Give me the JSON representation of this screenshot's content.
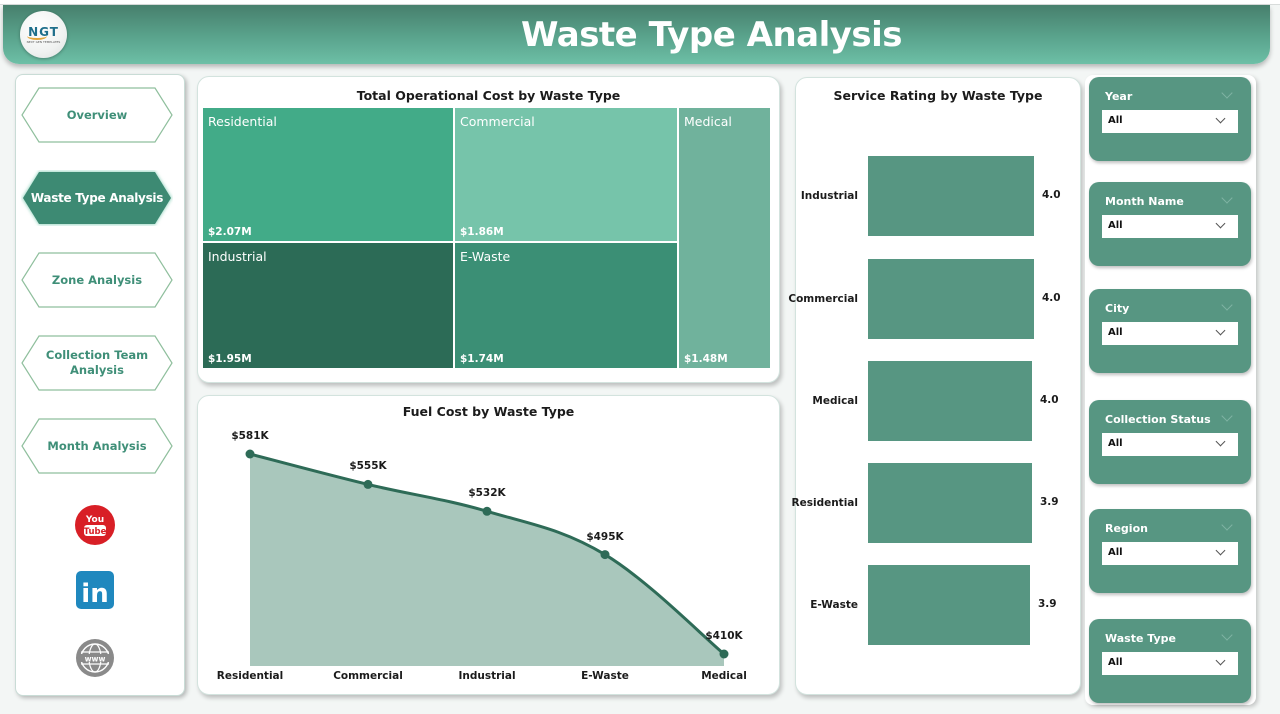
{
  "header": {
    "title": "Waste Type Analysis",
    "logo_text": "NGT",
    "logo_subtext": "NEXT GEN TEMPLATES"
  },
  "nav": {
    "items": [
      {
        "label": "Overview",
        "active": false
      },
      {
        "label": "Waste Type Analysis",
        "active": true
      },
      {
        "label": "Zone Analysis",
        "active": false
      },
      {
        "label": "Collection Team Analysis",
        "active": false
      },
      {
        "label": "Month Analysis",
        "active": false
      }
    ],
    "social": [
      {
        "icon": "youtube-icon",
        "text_top": "You",
        "text_bottom": "Tube",
        "color": "#d81f26"
      },
      {
        "icon": "linkedin-icon",
        "text": "in",
        "color": "#1f88be"
      },
      {
        "icon": "globe-www-icon",
        "text": "www",
        "color": "#8a8a8a"
      }
    ]
  },
  "treemap": {
    "title": "Total Operational Cost by Waste Type"
  },
  "fuel_chart": {
    "title": "Fuel Cost by Waste Type"
  },
  "rating_chart": {
    "title": "Service Rating by Waste Type"
  },
  "filters": [
    {
      "label": "Year",
      "value": "All"
    },
    {
      "label": "Month Name",
      "value": "All"
    },
    {
      "label": "City",
      "value": "All"
    },
    {
      "label": "Collection Status",
      "value": "All"
    },
    {
      "label": "Region",
      "value": "All"
    },
    {
      "label": "Waste Type",
      "value": "All"
    }
  ],
  "colors": {
    "header_dark": "#477f6c",
    "header_light": "#6dbfa6",
    "accent": "#579682",
    "line": "#2e6b57",
    "area_fill": "#a9c7bc",
    "treemap_residential": "#42ab88",
    "treemap_commercial": "#76c4aa",
    "treemap_medical": "#70b29c",
    "treemap_industrial": "#2c6b56",
    "treemap_ewaste": "#3b8f75"
  },
  "chart_data": [
    {
      "type": "treemap",
      "title": "Total Operational Cost by Waste Type",
      "categories": [
        "Residential",
        "Commercial",
        "Industrial",
        "E-Waste",
        "Medical"
      ],
      "values": [
        2.07,
        1.86,
        1.95,
        1.74,
        1.48
      ],
      "labels": [
        "$2.07M",
        "$1.86M",
        "$1.95M",
        "$1.74M",
        "$1.48M"
      ],
      "unit": "USD millions"
    },
    {
      "type": "area",
      "title": "Fuel Cost by Waste Type",
      "categories": [
        "Residential",
        "Commercial",
        "Industrial",
        "E-Waste",
        "Medical"
      ],
      "values": [
        581,
        555,
        532,
        495,
        410
      ],
      "labels": [
        "$581K",
        "$555K",
        "$532K",
        "$495K",
        "$410K"
      ],
      "unit": "USD thousands",
      "xlabel": "",
      "ylabel": "",
      "grid": false
    },
    {
      "type": "bar",
      "orientation": "horizontal",
      "title": "Service Rating by Waste Type",
      "categories": [
        "Industrial",
        "Commercial",
        "Medical",
        "Residential",
        "E-Waste"
      ],
      "values": [
        4.0,
        4.0,
        4.0,
        3.9,
        3.9
      ],
      "labels": [
        "4.0",
        "4.0",
        "4.0",
        "3.9",
        "3.9"
      ],
      "grid": false
    }
  ]
}
